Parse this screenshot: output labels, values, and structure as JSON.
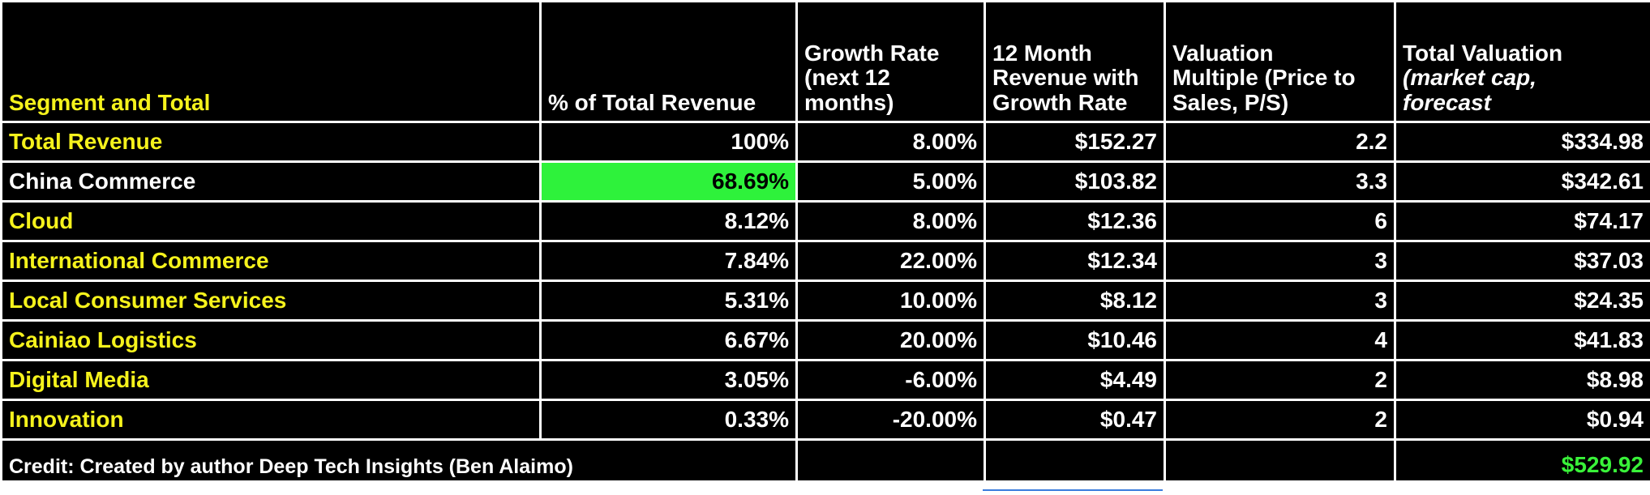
{
  "headers": {
    "segment": "Segment and Total",
    "pct_total": "% of Total Revenue",
    "growth_line1": "Growth Rate",
    "growth_line2": "(next 12",
    "growth_line3": "months)",
    "rev_line1": "12 Month",
    "rev_line2": "Revenue with",
    "rev_line3": "Growth Rate",
    "mult_line1": "Valuation",
    "mult_line2": "Multiple (Price to",
    "mult_line3": "Sales, P/S)",
    "total_line1": "Total Valuation",
    "total_line2": "(market cap,",
    "total_line3": "forecast"
  },
  "rows": [
    {
      "segment": "Total Revenue",
      "pct": "100%",
      "growth": "8.00%",
      "revenue": "$152.27",
      "multiple": "2.2",
      "valuation": "$334.98"
    },
    {
      "segment": "China Commerce",
      "pct": "68.69%",
      "growth": "5.00%",
      "revenue": "$103.82",
      "multiple": "3.3",
      "valuation": "$342.61"
    },
    {
      "segment": "Cloud",
      "pct": "8.12%",
      "growth": "8.00%",
      "revenue": "$12.36",
      "multiple": "6",
      "valuation": "$74.17"
    },
    {
      "segment": "International Commerce",
      "pct": "7.84%",
      "growth": "22.00%",
      "revenue": "$12.34",
      "multiple": "3",
      "valuation": "$37.03"
    },
    {
      "segment": "Local Consumer Services",
      "pct": "5.31%",
      "growth": "10.00%",
      "revenue": "$8.12",
      "multiple": "3",
      "valuation": "$24.35"
    },
    {
      "segment": "Cainiao Logistics",
      "pct": "6.67%",
      "growth": "20.00%",
      "revenue": "$10.46",
      "multiple": "4",
      "valuation": "$41.83"
    },
    {
      "segment": "Digital Media",
      "pct": "3.05%",
      "growth": "-6.00%",
      "revenue": "$4.49",
      "multiple": "2",
      "valuation": "$8.98"
    },
    {
      "segment": "Innovation",
      "pct": "0.33%",
      "growth": "-20.00%",
      "revenue": "$0.47",
      "multiple": "2",
      "valuation": "$0.94"
    }
  ],
  "footer": {
    "credit": "Credit: Created by author Deep Tech Insights (Ben Alaimo)",
    "grand_total": "$529.92"
  },
  "colors": {
    "background": "#000000",
    "label_yellow": "#f5f21c",
    "highlight_green": "#2ef23b",
    "growth_bright_green": "#39f239",
    "growth_soft_green": "#9ad38f"
  }
}
